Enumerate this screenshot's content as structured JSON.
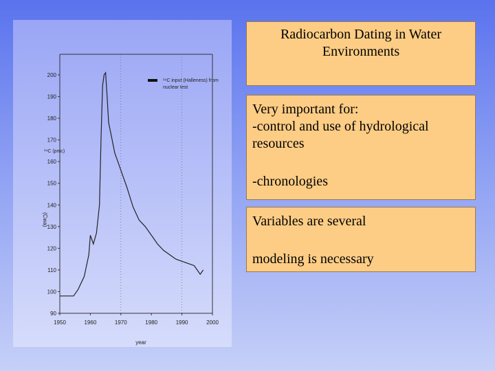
{
  "slide": {
    "title_lines": [
      "Radiocarbon Dating in Water",
      "Environments"
    ],
    "body": {
      "heading": "Very important for:",
      "lines": [
        "-control and use of hydrological",
        "resources"
      ],
      "extra": "-chronologies"
    },
    "vars": {
      "line1": "Variables are several",
      "line2": "modeling is necessary"
    }
  },
  "colors": {
    "panel_top": "#9aa6f5",
    "panel_bottom": "#d6dcfb",
    "text_box": "#fdcd85"
  },
  "chart_data": {
    "type": "line",
    "title": "",
    "xlabel": "year",
    "ylabel": "(Cwa)",
    "ylabel_top": "¹⁴C (pmc)",
    "xlim": [
      1950,
      2000
    ],
    "ylim": [
      90,
      200
    ],
    "x_ticks": [
      "1950",
      "1960",
      "1970",
      "1980",
      "1990",
      "2000"
    ],
    "y_ticks": [
      "90",
      "100",
      "110",
      "120",
      "130",
      "140",
      "150",
      "160",
      "170",
      "180",
      "190",
      "200"
    ],
    "legend": {
      "label_lines": [
        "¹⁴C input (Halleness) from",
        "nuclear test"
      ],
      "position": "top-right"
    },
    "grid": "vertical-dotted",
    "series": [
      {
        "name": "",
        "x": [
          1950,
          1953,
          1954.5,
          1956,
          1958,
          1959.5,
          1960,
          1961,
          1962,
          1963,
          1963.5,
          1964,
          1964.5,
          1965,
          1965.5,
          1966,
          1967,
          1968,
          1969,
          1970,
          1972,
          1974,
          1976,
          1978,
          1980,
          1982,
          1984,
          1986,
          1988,
          1990,
          1992,
          1994,
          1995,
          1996,
          1997
        ],
        "y": [
          98,
          98,
          98,
          101,
          107,
          117,
          126,
          122,
          127,
          140,
          170,
          195,
          200,
          201,
          190,
          178,
          171,
          164,
          160,
          156,
          148,
          139,
          133,
          130,
          126,
          122,
          119,
          117,
          115,
          114,
          113,
          112,
          110,
          108,
          110
        ]
      }
    ]
  }
}
